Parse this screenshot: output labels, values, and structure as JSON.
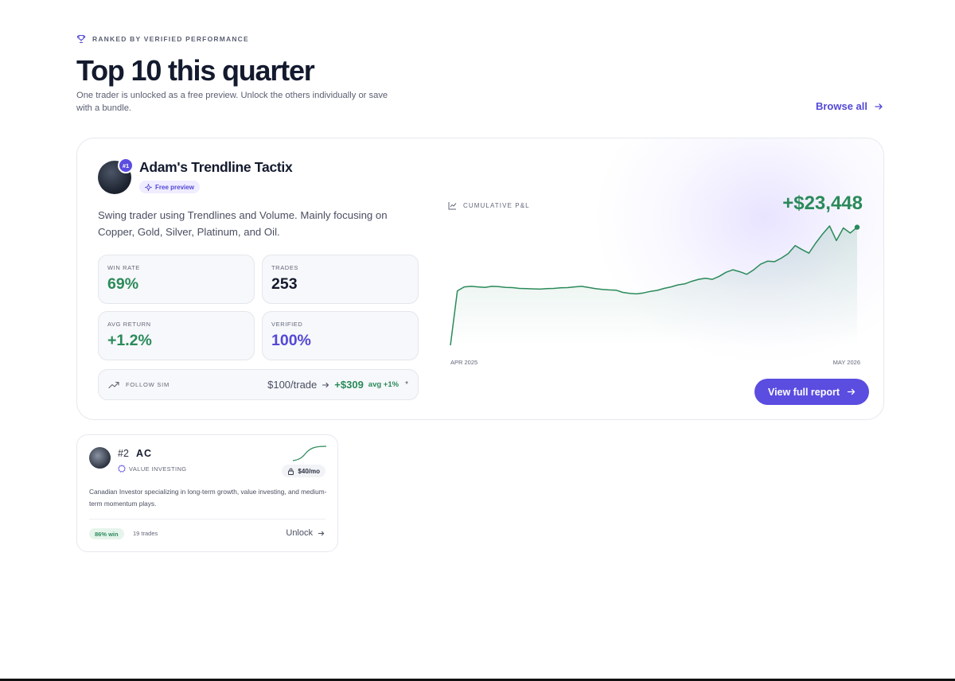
{
  "header": {
    "eyebrow": "RANKED BY VERIFIED PERFORMANCE",
    "eyebrow_icon": "trophy-icon",
    "title": "Top 10 this quarter",
    "subtitle": "One trader is unlocked as a free preview. Unlock the others individually or save with a bundle.",
    "browse_label": "Browse all"
  },
  "featured": {
    "rank": "#1",
    "name": "Adam's Trendline Tactix",
    "badge": "Free preview",
    "description": "Swing trader using Trendlines and Volume. Mainly focusing on Copper, Gold, Silver, Platinum, and Oil.",
    "stats": {
      "win_rate_label": "WIN RATE",
      "win_rate": "69%",
      "trades_label": "TRADES",
      "trades": "253",
      "avg_return_label": "AVG RETURN",
      "avg_return": "+1.2%",
      "verified_label": "VERIFIED",
      "verified": "100%"
    },
    "follow_sim": {
      "label": "FOLLOW SIM",
      "base": "$100/trade",
      "profit": "+$309",
      "avg": "avg +1%",
      "footnote": "*"
    },
    "chart_label": "CUMULATIVE P&L",
    "total": "+$23,448",
    "x_start": "APR 2025",
    "x_end": "MAY 2026",
    "button_label": "View full report",
    "colors": {
      "accent": "#5b4de0",
      "positive": "#2a8a5a"
    }
  },
  "chart_data": {
    "type": "line",
    "title": "",
    "xlabel": "",
    "ylabel": "",
    "x_range": [
      "APR 2025",
      "MAY 2026"
    ],
    "series": [
      {
        "values": [
          0,
          10800,
          11600,
          11700,
          11600,
          11500,
          11700,
          11650,
          11500,
          11450,
          11300,
          11250,
          11200,
          11150,
          11250,
          11300,
          11400,
          11450,
          11600,
          11700,
          11500,
          11250,
          11100,
          11000,
          10950,
          10500,
          10300,
          10200,
          10400,
          10700,
          10900,
          11300,
          11600,
          12000,
          12200,
          12700,
          13100,
          13300,
          13100,
          13700,
          14500,
          15000,
          14600,
          14100,
          15000,
          16100,
          16700,
          16600,
          17300,
          18200,
          19800,
          19000,
          18300,
          20300,
          22100,
          23700,
          20800,
          23300,
          22300,
          23448
        ]
      }
    ]
  },
  "second_card": {
    "rank": "#2",
    "name": "AC",
    "tag": "VALUE INVESTING",
    "price": "$40/mo",
    "description": "Canadian Investor specializing in long-term growth, value investing, and medium-term momentum plays.",
    "win": "86% win",
    "trades": "19 trades",
    "unlock_label": "Unlock"
  }
}
